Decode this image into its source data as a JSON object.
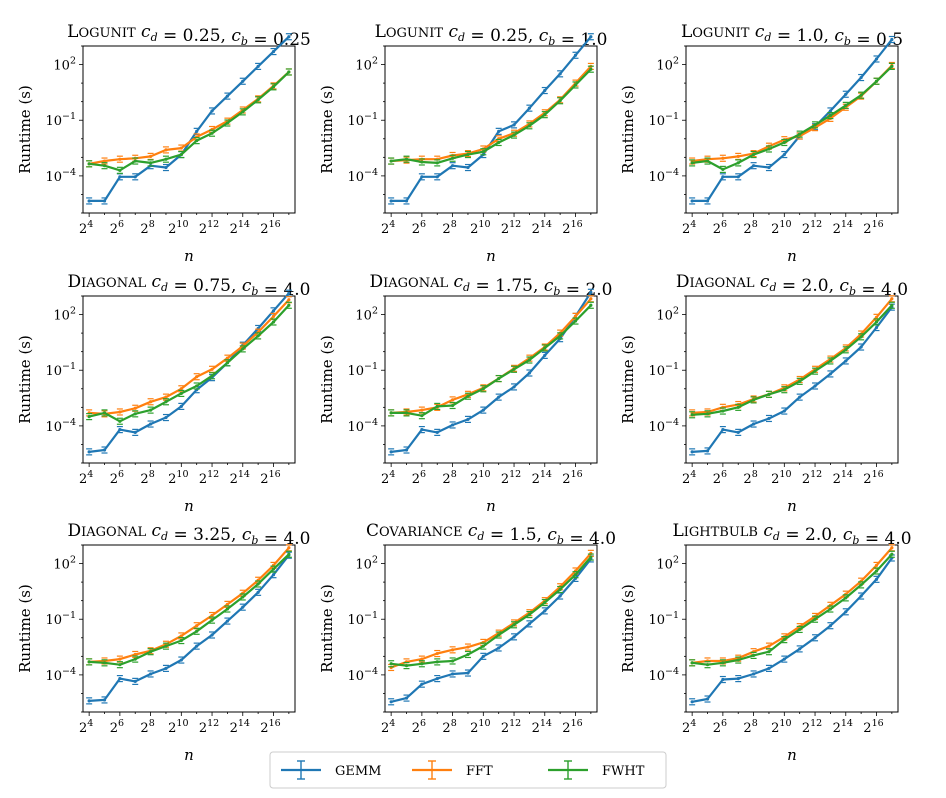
{
  "figure": {
    "legend": [
      {
        "name": "GEMM",
        "color": "#1f77b4"
      },
      {
        "name": "FFT",
        "color": "#ff7f0e"
      },
      {
        "name": "FWHT",
        "color": "#2ca02c"
      }
    ]
  },
  "chart_data": [
    {
      "type": "line",
      "title": "Logunit c_d = 0.25, c_b = 0.25",
      "xlabel": "n",
      "ylabel": "Runtime (s)",
      "x_log2": [
        4,
        5,
        6,
        7,
        8,
        9,
        10,
        11,
        12,
        13,
        14,
        15,
        16,
        17
      ],
      "x_tick_labels": [
        "2^4",
        "2^6",
        "2^8",
        "2^10",
        "2^12",
        "2^14",
        "2^16"
      ],
      "y_tick_labels": [
        "10^-4",
        "10^-1",
        "10^2"
      ],
      "y_log10_range": [
        -6.0,
        3.0
      ],
      "series": [
        {
          "name": "GEMM",
          "log10_values": [
            -5.35,
            -5.35,
            -4.05,
            -4.05,
            -3.45,
            -3.55,
            -2.85,
            -1.6,
            -0.5,
            0.3,
            1.1,
            1.9,
            2.7,
            3.5
          ]
        },
        {
          "name": "FFT",
          "log10_values": [
            -3.35,
            -3.2,
            -3.1,
            -3.05,
            -2.95,
            -2.6,
            -2.5,
            -1.9,
            -1.5,
            -1.05,
            -0.45,
            0.15,
            0.85,
            1.6
          ]
        },
        {
          "name": "FWHT",
          "log10_values": [
            -3.35,
            -3.45,
            -3.7,
            -3.2,
            -3.3,
            -3.1,
            -2.85,
            -2.1,
            -1.7,
            -1.15,
            -0.55,
            0.1,
            0.8,
            1.6
          ]
        }
      ]
    },
    {
      "type": "line",
      "title": "Logunit c_d = 0.25, c_b = 1.0",
      "xlabel": "n",
      "ylabel": "Runtime (s)",
      "x_log2": [
        4,
        5,
        6,
        7,
        8,
        9,
        10,
        11,
        12,
        13,
        14,
        15,
        16,
        17
      ],
      "x_tick_labels": [
        "2^4",
        "2^6",
        "2^8",
        "2^10",
        "2^12",
        "2^14",
        "2^16"
      ],
      "y_tick_labels": [
        "10^-4",
        "10^-1",
        "10^2"
      ],
      "y_log10_range": [
        -6.0,
        3.0
      ],
      "series": [
        {
          "name": "GEMM",
          "log10_values": [
            -5.35,
            -5.35,
            -4.05,
            -4.05,
            -3.45,
            -3.55,
            -2.85,
            -1.6,
            -1.25,
            -0.35,
            0.6,
            1.5,
            2.5,
            3.5
          ]
        },
        {
          "name": "FFT",
          "log10_values": [
            -3.2,
            -3.15,
            -3.1,
            -3.1,
            -2.9,
            -2.8,
            -2.55,
            -2.0,
            -1.7,
            -1.2,
            -0.6,
            0.1,
            1.0,
            1.9
          ]
        },
        {
          "name": "FWHT",
          "log10_values": [
            -3.2,
            -3.1,
            -3.25,
            -3.3,
            -3.05,
            -2.85,
            -2.7,
            -2.2,
            -1.8,
            -1.3,
            -0.7,
            0.05,
            0.9,
            1.75
          ]
        }
      ]
    },
    {
      "type": "line",
      "title": "Logunit c_d = 1.0, c_b = 0.5",
      "xlabel": "n",
      "ylabel": "Runtime (s)",
      "x_log2": [
        4,
        5,
        6,
        7,
        8,
        9,
        10,
        11,
        12,
        13,
        14,
        15,
        16,
        17
      ],
      "x_tick_labels": [
        "2^4",
        "2^6",
        "2^8",
        "2^10",
        "2^12",
        "2^14",
        "2^16"
      ],
      "y_tick_labels": [
        "10^-4",
        "10^-1",
        "10^2"
      ],
      "y_log10_range": [
        -6.0,
        3.0
      ],
      "series": [
        {
          "name": "GEMM",
          "log10_values": [
            -5.35,
            -5.35,
            -4.05,
            -4.05,
            -3.45,
            -3.55,
            -2.85,
            -1.85,
            -1.35,
            -0.5,
            0.4,
            1.3,
            2.3,
            3.35
          ]
        },
        {
          "name": "FFT",
          "log10_values": [
            -3.2,
            -3.1,
            -3.05,
            -2.95,
            -2.8,
            -2.4,
            -2.05,
            -1.85,
            -1.4,
            -0.9,
            -0.3,
            0.3,
            1.1,
            1.95
          ]
        },
        {
          "name": "FWHT",
          "log10_values": [
            -3.3,
            -3.2,
            -3.65,
            -3.3,
            -2.85,
            -2.55,
            -2.2,
            -1.75,
            -1.25,
            -0.75,
            -0.2,
            0.35,
            1.1,
            1.9
          ]
        }
      ]
    },
    {
      "type": "line",
      "title": "Diagonal c_d = 0.75, c_b = 4.0",
      "xlabel": "n",
      "ylabel": "Runtime (s)",
      "x_log2": [
        4,
        5,
        6,
        7,
        8,
        9,
        10,
        11,
        12,
        13,
        14,
        15,
        16,
        17
      ],
      "x_tick_labels": [
        "2^4",
        "2^6",
        "2^8",
        "2^10",
        "2^12",
        "2^14",
        "2^16"
      ],
      "y_tick_labels": [
        "10^-4",
        "10^-1",
        "10^2"
      ],
      "y_log10_range": [
        -6.0,
        3.0
      ],
      "series": [
        {
          "name": "GEMM",
          "log10_values": [
            -5.4,
            -5.3,
            -4.2,
            -4.35,
            -3.9,
            -3.55,
            -2.95,
            -2.05,
            -1.4,
            -0.6,
            0.35,
            1.25,
            2.2,
            3.15
          ]
        },
        {
          "name": "FFT",
          "log10_values": [
            -3.3,
            -3.35,
            -3.25,
            -3.05,
            -2.7,
            -2.45,
            -2.0,
            -1.35,
            -0.95,
            -0.35,
            0.3,
            1.05,
            1.9,
            2.8
          ]
        },
        {
          "name": "FWHT",
          "log10_values": [
            -3.5,
            -3.3,
            -3.75,
            -3.35,
            -3.15,
            -2.7,
            -2.25,
            -1.85,
            -1.3,
            -0.6,
            0.15,
            0.85,
            1.6,
            2.5
          ]
        }
      ]
    },
    {
      "type": "line",
      "title": "Diagonal c_d = 1.75, c_b = 2.0",
      "xlabel": "n",
      "ylabel": "Runtime (s)",
      "x_log2": [
        4,
        5,
        6,
        7,
        8,
        9,
        10,
        11,
        12,
        13,
        14,
        15,
        16,
        17
      ],
      "x_tick_labels": [
        "2^4",
        "2^6",
        "2^8",
        "2^10",
        "2^12",
        "2^14",
        "2^16"
      ],
      "y_tick_labels": [
        "10^-4",
        "10^-1",
        "10^2"
      ],
      "y_log10_range": [
        -6.0,
        3.0
      ],
      "series": [
        {
          "name": "GEMM",
          "log10_values": [
            -5.4,
            -5.3,
            -4.2,
            -4.35,
            -3.95,
            -3.65,
            -3.15,
            -2.45,
            -1.9,
            -1.15,
            -0.2,
            0.7,
            1.9,
            3.2
          ]
        },
        {
          "name": "FFT",
          "log10_values": [
            -3.3,
            -3.25,
            -3.15,
            -3.0,
            -2.6,
            -2.3,
            -1.95,
            -1.45,
            -0.9,
            -0.35,
            0.25,
            1.0,
            1.9,
            2.85
          ]
        },
        {
          "name": "FWHT",
          "log10_values": [
            -3.3,
            -3.3,
            -3.45,
            -2.95,
            -2.9,
            -2.4,
            -2.0,
            -1.45,
            -0.95,
            -0.45,
            0.2,
            0.85,
            1.65,
            2.5
          ]
        }
      ]
    },
    {
      "type": "line",
      "title": "Diagonal c_d = 2.0, c_b = 4.0",
      "xlabel": "n",
      "ylabel": "Runtime (s)",
      "x_log2": [
        4,
        5,
        6,
        7,
        8,
        9,
        10,
        11,
        12,
        13,
        14,
        15,
        16,
        17
      ],
      "x_tick_labels": [
        "2^4",
        "2^6",
        "2^8",
        "2^10",
        "2^12",
        "2^14",
        "2^16"
      ],
      "y_tick_labels": [
        "10^-4",
        "10^-1",
        "10^2"
      ],
      "y_log10_range": [
        -6.0,
        3.0
      ],
      "series": [
        {
          "name": "GEMM",
          "log10_values": [
            -5.4,
            -5.35,
            -4.2,
            -4.35,
            -3.9,
            -3.6,
            -3.2,
            -2.45,
            -1.85,
            -1.2,
            -0.5,
            0.25,
            1.3,
            2.4
          ]
        },
        {
          "name": "FFT",
          "log10_values": [
            -3.3,
            -3.25,
            -3.0,
            -2.85,
            -2.55,
            -2.3,
            -1.95,
            -1.5,
            -0.95,
            -0.4,
            0.2,
            0.95,
            1.85,
            2.85
          ]
        },
        {
          "name": "FWHT",
          "log10_values": [
            -3.4,
            -3.35,
            -3.2,
            -3.0,
            -2.6,
            -2.3,
            -2.05,
            -1.6,
            -1.05,
            -0.5,
            0.1,
            0.8,
            1.6,
            2.5
          ]
        }
      ]
    },
    {
      "type": "line",
      "title": "Diagonal c_d = 3.25, c_b = 4.0",
      "xlabel": "n",
      "ylabel": "Runtime (s)",
      "x_log2": [
        4,
        5,
        6,
        7,
        8,
        9,
        10,
        11,
        12,
        13,
        14,
        15,
        16,
        17
      ],
      "x_tick_labels": [
        "2^4",
        "2^6",
        "2^8",
        "2^10",
        "2^12",
        "2^14",
        "2^16"
      ],
      "y_tick_labels": [
        "10^-4",
        "10^-1",
        "10^2"
      ],
      "y_log10_range": [
        -6.0,
        3.0
      ],
      "series": [
        {
          "name": "GEMM",
          "log10_values": [
            -5.4,
            -5.35,
            -4.2,
            -4.35,
            -3.95,
            -3.65,
            -3.2,
            -2.45,
            -1.85,
            -1.1,
            -0.35,
            0.45,
            1.4,
            2.45
          ]
        },
        {
          "name": "FFT",
          "log10_values": [
            -3.3,
            -3.25,
            -3.15,
            -2.9,
            -2.7,
            -2.35,
            -1.9,
            -1.35,
            -0.8,
            -0.2,
            0.4,
            1.1,
            1.9,
            2.85
          ]
        },
        {
          "name": "FWHT",
          "log10_values": [
            -3.3,
            -3.35,
            -3.45,
            -3.15,
            -2.75,
            -2.45,
            -2.15,
            -1.65,
            -1.05,
            -0.45,
            0.2,
            0.9,
            1.7,
            2.5
          ]
        }
      ]
    },
    {
      "type": "line",
      "title": "Covariance c_d = 1.5, c_b = 4.0",
      "xlabel": "n",
      "ylabel": "Runtime (s)",
      "x_log2": [
        4,
        5,
        6,
        7,
        8,
        9,
        10,
        11,
        12,
        13,
        14,
        15,
        16,
        17
      ],
      "x_tick_labels": [
        "2^4",
        "2^6",
        "2^8",
        "2^10",
        "2^12",
        "2^14",
        "2^16"
      ],
      "y_tick_labels": [
        "10^-4",
        "10^-1",
        "10^2"
      ],
      "y_log10_range": [
        -6.0,
        3.0
      ],
      "series": [
        {
          "name": "GEMM",
          "log10_values": [
            -5.45,
            -5.25,
            -4.5,
            -4.2,
            -3.95,
            -3.9,
            -3.0,
            -2.55,
            -1.95,
            -1.25,
            -0.55,
            0.25,
            1.2,
            2.25
          ]
        },
        {
          "name": "FFT",
          "log10_values": [
            -3.6,
            -3.3,
            -3.15,
            -2.85,
            -2.65,
            -2.5,
            -2.25,
            -1.75,
            -1.2,
            -0.65,
            0.0,
            0.75,
            1.6,
            2.55
          ]
        },
        {
          "name": "FWHT",
          "log10_values": [
            -3.4,
            -3.5,
            -3.4,
            -3.3,
            -3.25,
            -2.9,
            -2.45,
            -1.85,
            -1.3,
            -0.75,
            -0.1,
            0.6,
            1.4,
            2.35
          ]
        }
      ]
    },
    {
      "type": "line",
      "title": "Lightbulb c_d = 2.0, c_b = 4.0",
      "xlabel": "n",
      "ylabel": "Runtime (s)",
      "x_log2": [
        4,
        5,
        6,
        7,
        8,
        9,
        10,
        11,
        12,
        13,
        14,
        15,
        16,
        17
      ],
      "x_tick_labels": [
        "2^4",
        "2^6",
        "2^8",
        "2^10",
        "2^12",
        "2^14",
        "2^16"
      ],
      "y_tick_labels": [
        "10^-4",
        "10^-1",
        "10^2"
      ],
      "y_log10_range": [
        -6.0,
        3.0
      ],
      "series": [
        {
          "name": "GEMM",
          "log10_values": [
            -5.45,
            -5.3,
            -4.25,
            -4.2,
            -3.95,
            -3.65,
            -3.15,
            -2.6,
            -2.0,
            -1.35,
            -0.6,
            0.25,
            1.15,
            2.3
          ]
        },
        {
          "name": "FFT",
          "log10_values": [
            -3.35,
            -3.25,
            -3.25,
            -3.1,
            -2.75,
            -2.45,
            -1.95,
            -1.4,
            -0.85,
            -0.25,
            0.35,
            1.05,
            1.9,
            2.85
          ]
        },
        {
          "name": "FWHT",
          "log10_values": [
            -3.35,
            -3.45,
            -3.35,
            -3.2,
            -2.95,
            -2.75,
            -2.1,
            -1.55,
            -1.0,
            -0.45,
            0.15,
            0.85,
            1.6,
            2.5
          ]
        }
      ]
    }
  ]
}
